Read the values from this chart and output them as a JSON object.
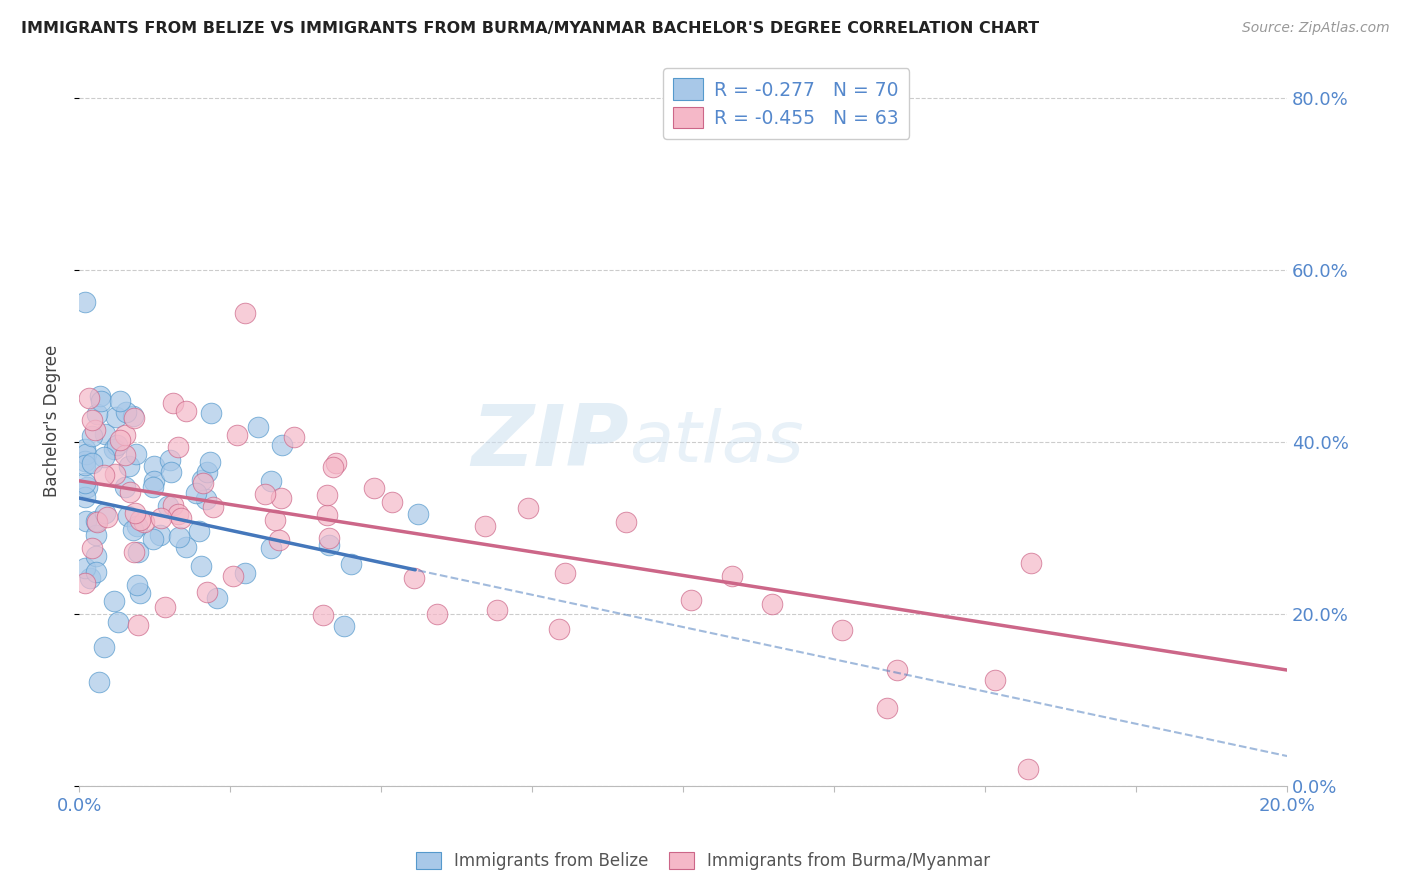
{
  "title": "IMMIGRANTS FROM BELIZE VS IMMIGRANTS FROM BURMA/MYANMAR BACHELOR'S DEGREE CORRELATION CHART",
  "source": "Source: ZipAtlas.com",
  "ylabel": "Bachelor's Degree",
  "color_belize": "#a8c8e8",
  "color_belize_edge": "#5599cc",
  "color_belize_line": "#4477bb",
  "color_burma": "#f5b8c8",
  "color_burma_edge": "#cc6688",
  "color_burma_line": "#cc6688",
  "r_belize": -0.277,
  "n_belize": 70,
  "r_burma": -0.455,
  "n_burma": 63,
  "legend_color": "#5588cc",
  "xlim": [
    0.0,
    0.2
  ],
  "ylim": [
    0.0,
    0.85
  ],
  "watermark_zip": "ZIP",
  "watermark_atlas": "atlas",
  "background_color": "#ffffff",
  "grid_color": "#cccccc",
  "tick_color": "#5588cc"
}
